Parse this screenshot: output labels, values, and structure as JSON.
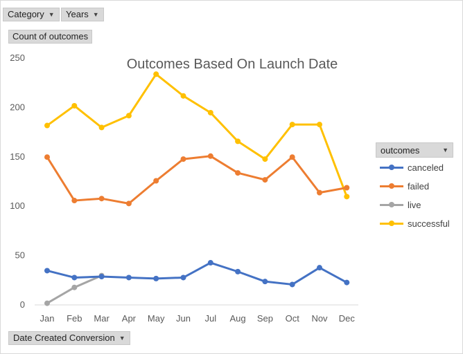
{
  "filters": {
    "category_label": "Category",
    "years_label": "Years",
    "count_label": "Count of outcomes",
    "date_label": "Date Created Conversion"
  },
  "legend": {
    "title": "outcomes"
  },
  "chart_data": {
    "type": "line",
    "title": "Outcomes Based On Launch Date",
    "xlabel": "",
    "ylabel": "",
    "categories": [
      "Jan",
      "Feb",
      "Mar",
      "Apr",
      "May",
      "Jun",
      "Jul",
      "Aug",
      "Sep",
      "Oct",
      "Nov",
      "Dec"
    ],
    "ylim": [
      0,
      250
    ],
    "yticks": [
      0,
      50,
      100,
      150,
      200,
      250
    ],
    "grid": false,
    "legend_position": "right",
    "series": [
      {
        "name": "canceled",
        "color": "#4472c4",
        "values": [
          34,
          27,
          28,
          27,
          26,
          27,
          42,
          33,
          23,
          20,
          37,
          22
        ]
      },
      {
        "name": "failed",
        "color": "#ed7d31",
        "values": [
          149,
          105,
          107,
          102,
          125,
          147,
          150,
          133,
          126,
          149,
          113,
          118
        ]
      },
      {
        "name": "live",
        "color": "#a5a5a5",
        "values": [
          1,
          17,
          29,
          null,
          null,
          null,
          null,
          null,
          null,
          null,
          null,
          null
        ]
      },
      {
        "name": "successful",
        "color": "#ffc000",
        "values": [
          181,
          201,
          179,
          191,
          233,
          211,
          194,
          165,
          147,
          182,
          182,
          109
        ]
      }
    ]
  }
}
